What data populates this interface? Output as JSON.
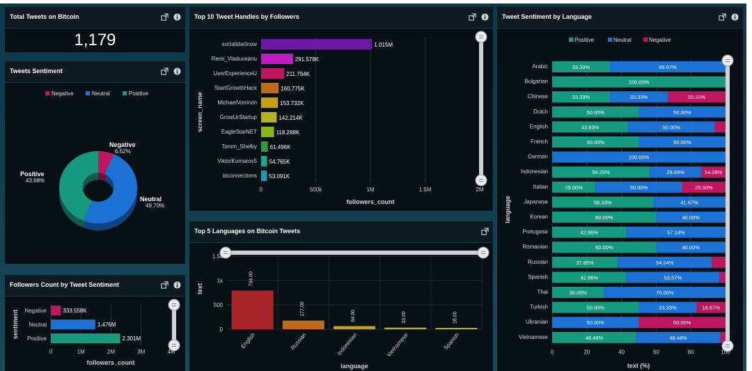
{
  "panels": {
    "total": {
      "title": "Total Tweets on Bitcoin",
      "value": "1,179"
    },
    "sentiment": {
      "title": "Tweets Sentiment"
    },
    "followers_sentiment": {
      "title": "Followers Count by Tweet Sentiment"
    },
    "handles": {
      "title": "Top 10 Tweet Handles by Followers"
    },
    "languages": {
      "title": "Top 5 Languages on Bitcoin Tweets"
    },
    "lang_sentiment": {
      "title": "Tweet Sentiment by Language"
    }
  },
  "icons": {
    "expand": "expand-icon",
    "info": "info-icon"
  },
  "colors": {
    "positive": "#159a80",
    "neutral": "#1b72d4",
    "negative": "#c0155f",
    "purple": "#6a1aa6",
    "magenta": "#c01ac0"
  },
  "chart_data": [
    {
      "id": "sentiment_pie",
      "type": "pie",
      "title": "Tweets Sentiment",
      "legend": [
        "Negative",
        "Neutral",
        "Positive"
      ],
      "legend_position": "top",
      "slices": [
        {
          "name": "Negative",
          "value": 6.62,
          "label": "6.62%",
          "color": "#c0155f"
        },
        {
          "name": "Neutral",
          "value": 49.7,
          "label": "49.70%",
          "color": "#1b72d4"
        },
        {
          "name": "Positive",
          "value": 43.68,
          "label": "43.68%",
          "color": "#159a80"
        }
      ]
    },
    {
      "id": "followers_by_sentiment",
      "type": "bar",
      "orientation": "horizontal",
      "categories": [
        "Negative",
        "Neutral",
        "Positive"
      ],
      "values": [
        333558,
        1476000,
        2301000
      ],
      "value_labels": [
        "333.558K",
        "1.476M",
        "2.301M"
      ],
      "colors": [
        "#c0155f",
        "#1b72d4",
        "#159a80"
      ],
      "xlabel": "followers_count",
      "ylabel": "sentiment",
      "xlim": [
        0,
        4000000
      ],
      "xticks": [
        "0",
        "1M",
        "2M",
        "3M",
        "4M"
      ]
    },
    {
      "id": "top_handles",
      "type": "bar",
      "orientation": "horizontal",
      "categories": [
        "socialstartnow",
        "Remi_Vladuceanu",
        "UserExperienceU",
        "StartGrowthHack",
        "MichaelVonIrvin",
        "GrowUrStartup",
        "EagleStarNET",
        "Tomm_Shelby",
        "ViktorKomarov5",
        "biconnections"
      ],
      "values": [
        1015000,
        291578,
        211794,
        160775,
        153732,
        142214,
        118288,
        61496,
        54765,
        53091
      ],
      "value_labels": [
        "1.015M",
        "291.578K",
        "211.794K",
        "160.775K",
        "153.732K",
        "142.214K",
        "118.288K",
        "61.496K",
        "54.765K",
        "53.091K"
      ],
      "colors": [
        "#6a1aa6",
        "#c01ac0",
        "#c0155f",
        "#c06a1a",
        "#c4a018",
        "#b8b020",
        "#8ab51e",
        "#2e9e3a",
        "#19a88f",
        "#1a9cb8"
      ],
      "xlabel": "followers_count",
      "ylabel": "screen_name",
      "xlim": [
        0,
        2000000
      ],
      "xticks": [
        "0",
        "500k",
        "1M",
        "1.5M",
        "2M"
      ]
    },
    {
      "id": "top_languages",
      "type": "bar",
      "categories": [
        "English",
        "Russian",
        "Indonesian",
        "Vietnamese",
        "Spanish"
      ],
      "values": [
        794,
        177,
        64,
        33,
        28
      ],
      "value_labels": [
        "794.00",
        "177.00",
        "64.00",
        "33.00",
        "28.00"
      ],
      "colors": [
        "#a8242a",
        "#c06a1a",
        "#c4a018",
        "#b8b020",
        "#b8b020"
      ],
      "xlabel": "language",
      "ylabel": "text",
      "ylim": [
        0,
        1500
      ],
      "yticks": [
        "0",
        "500",
        "1k",
        "1.5k"
      ]
    },
    {
      "id": "sentiment_by_language",
      "type": "bar",
      "stacked": true,
      "orientation": "horizontal",
      "xlabel": "text (%)",
      "ylabel": "language",
      "xlim": [
        0,
        100
      ],
      "xticks": [
        "0",
        "20",
        "40",
        "60",
        "80",
        "100"
      ],
      "legend": [
        "Positive",
        "Neutral",
        "Negative"
      ],
      "legend_position": "top",
      "categories": [
        "Arabic",
        "Bulgarian",
        "Chinese",
        "Dutch",
        "English",
        "French",
        "German",
        "Indonesian",
        "Italian",
        "Japanese",
        "Korean",
        "Portugese",
        "Romanian",
        "Russian",
        "Spanish",
        "Thai",
        "Turkish",
        "Ukranian",
        "Vietnamese"
      ],
      "series": [
        {
          "name": "Positive",
          "color": "#159a80",
          "values": [
            33.33,
            100,
            33.33,
            50,
            43.83,
            50,
            0,
            56.25,
            25,
            58.33,
            60,
            42.86,
            60,
            37.85,
            42.86,
            30,
            50,
            0,
            48.48
          ],
          "labels": [
            "33.33%",
            "100.00%",
            "33.33%",
            "50.00%",
            "43.83%",
            "50.00%",
            "",
            "56.25%",
            "25.00%",
            "58.33%",
            "60.00%",
            "42.86%",
            "60.00%",
            "37.85%",
            "42.86%",
            "30.00%",
            "50.00%",
            "",
            "48.48%"
          ]
        },
        {
          "name": "Neutral",
          "color": "#1b72d4",
          "values": [
            66.67,
            0,
            33.33,
            50,
            50,
            50,
            100,
            29.69,
            50,
            41.67,
            40,
            57.14,
            40,
            54.24,
            53.57,
            70,
            33.33,
            50,
            48.48
          ],
          "labels": [
            "66.67%",
            "",
            "33.33%",
            "50.00%",
            "50.00%",
            "50.00%",
            "100.00%",
            "29.69%",
            "50.00%",
            "41.67%",
            "40.00%",
            "57.14%",
            "40.00%",
            "54.24%",
            "53.57%",
            "70.00%",
            "33.33%",
            "50.00%",
            "48.48%"
          ]
        },
        {
          "name": "Negative",
          "color": "#c0155f",
          "values": [
            0,
            0,
            33.33,
            0,
            6.17,
            0,
            0,
            14.06,
            25,
            0,
            0,
            0,
            0,
            7.91,
            3.57,
            0,
            16.67,
            50,
            3.04
          ],
          "labels": [
            "",
            "",
            "33.33%",
            "",
            "",
            "",
            "",
            "14.06%",
            "25.00%",
            "",
            "",
            "",
            "",
            "",
            "",
            "",
            "16.67%",
            "50.00%",
            ""
          ]
        }
      ]
    }
  ]
}
